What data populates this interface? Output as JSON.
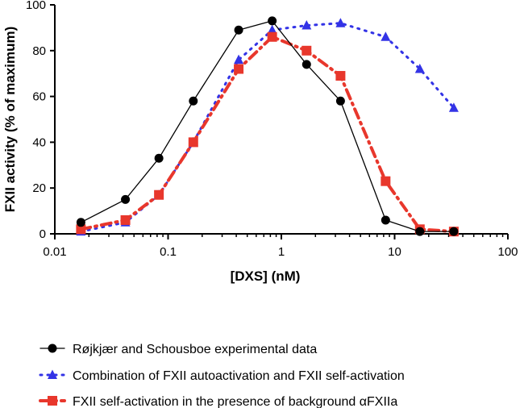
{
  "chart_data": {
    "type": "line",
    "xlabel": "[DXS] (nM)",
    "ylabel": "FXII activity (% of maximum)",
    "xscale": "log",
    "xlim": [
      0.01,
      100
    ],
    "ylim": [
      0,
      100
    ],
    "x_ticks": [
      "0.01",
      "0.1",
      "1",
      "10",
      "100"
    ],
    "y_ticks": [
      "0",
      "20",
      "40",
      "60",
      "80",
      "100"
    ],
    "legend_position": "bottom",
    "series": [
      {
        "name": "Røjkjær and Schousboe experimental data",
        "marker": "circle",
        "line": "solid",
        "color": "#000000",
        "x": [
          0.017,
          0.042,
          0.083,
          0.167,
          0.42,
          0.83,
          1.67,
          3.33,
          8.33,
          16.7,
          33.3
        ],
        "y": [
          5,
          15,
          33,
          58,
          89,
          93,
          74,
          58,
          6,
          1,
          1
        ]
      },
      {
        "name": "Combination of FXII autoactivation and FXII self-activation",
        "marker": "triangle",
        "line": "dotted",
        "color": "#3333e6",
        "x": [
          0.017,
          0.042,
          0.083,
          0.167,
          0.42,
          0.83,
          1.67,
          3.33,
          8.33,
          16.7,
          33.3
        ],
        "y": [
          1,
          5,
          17,
          40,
          76,
          89,
          91,
          92,
          86,
          72,
          55
        ]
      },
      {
        "name": "FXII self-activation in the presence of background αFXIIa",
        "marker": "square",
        "line": "dashdot",
        "color": "#e8372c",
        "x": [
          0.017,
          0.042,
          0.083,
          0.167,
          0.42,
          0.83,
          1.67,
          3.33,
          8.33,
          16.7,
          33.3
        ],
        "y": [
          2,
          6,
          17,
          40,
          72,
          86,
          80,
          69,
          23,
          2,
          1
        ]
      }
    ]
  }
}
